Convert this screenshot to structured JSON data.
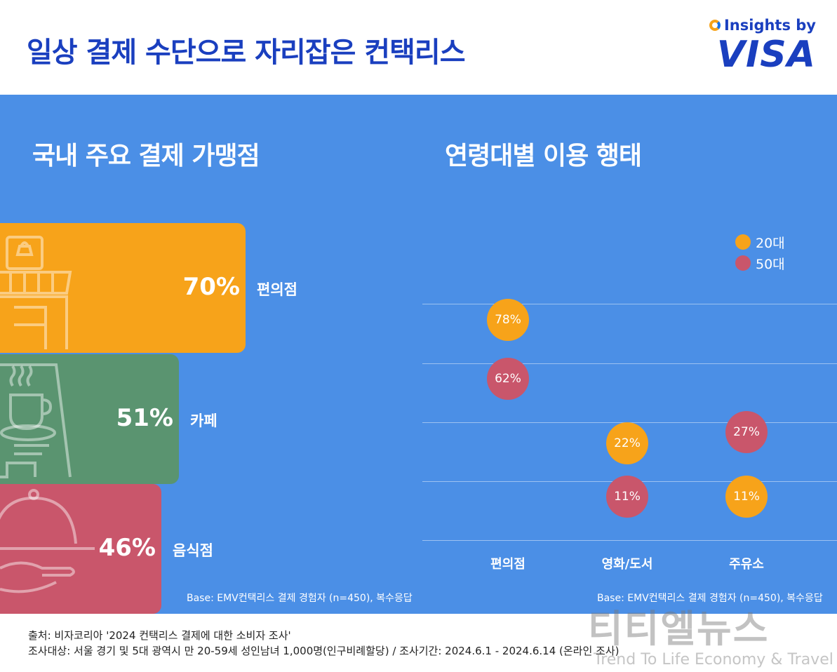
{
  "header": {
    "title": "일상 결제 수단으로 자리잡은 컨택리스",
    "brand_top": "Insights by",
    "brand_name": "VISA"
  },
  "colors": {
    "panel_bg": "#4b8fe6",
    "convenience": "#f7a31a",
    "cafe": "#5a9470",
    "restaurant": "#c9566b",
    "age20": "#f7a31a",
    "age50": "#c9566b",
    "title": "#1a3fbf"
  },
  "left_chart": {
    "title": "국내 주요 결제 가맹점",
    "base_note": "Base: EMV컨택리스 결제 경험자 (n=450), 복수응답"
  },
  "right_chart": {
    "title": "연령대별 이용 행태",
    "base_note": "Base: EMV컨택리스 결제 경험자 (n=450), 복수응답"
  },
  "chart_data": [
    {
      "type": "bar",
      "title": "국내 주요 결제 가맹점",
      "categories": [
        "편의점",
        "카페",
        "음식점"
      ],
      "values": [
        70,
        51,
        46
      ],
      "value_labels": [
        "70%",
        "51%",
        "46%"
      ],
      "icons": [
        "store-icon",
        "coffee-cup-icon",
        "cloche-icon"
      ]
    },
    {
      "type": "scatter",
      "title": "연령대별 이용 행태",
      "categories": [
        "편의점",
        "영화/도서",
        "주유소"
      ],
      "legend_position": "top-right",
      "series": [
        {
          "name": "20대",
          "values": [
            78,
            22,
            11
          ],
          "labels": [
            "78%",
            "22%",
            "11%"
          ]
        },
        {
          "name": "50대",
          "values": [
            62,
            11,
            27
          ],
          "labels": [
            "62%",
            "11%",
            "27%"
          ]
        }
      ]
    }
  ],
  "footer": {
    "source": "출처: 비자코리아 '2024 컨택리스 결제에 대한 소비자 조사'",
    "survey": "조사대상: 서울 경기 및 5대 광역시 만 20-59세 성인남녀 1,000명(인구비례할당)  / 조사기간: 2024.6.1 - 2024.6.14 (온라인 조사)"
  },
  "watermark": {
    "name": "티티엘뉴스",
    "tagline": "Trend To Life Economy & Travel"
  }
}
